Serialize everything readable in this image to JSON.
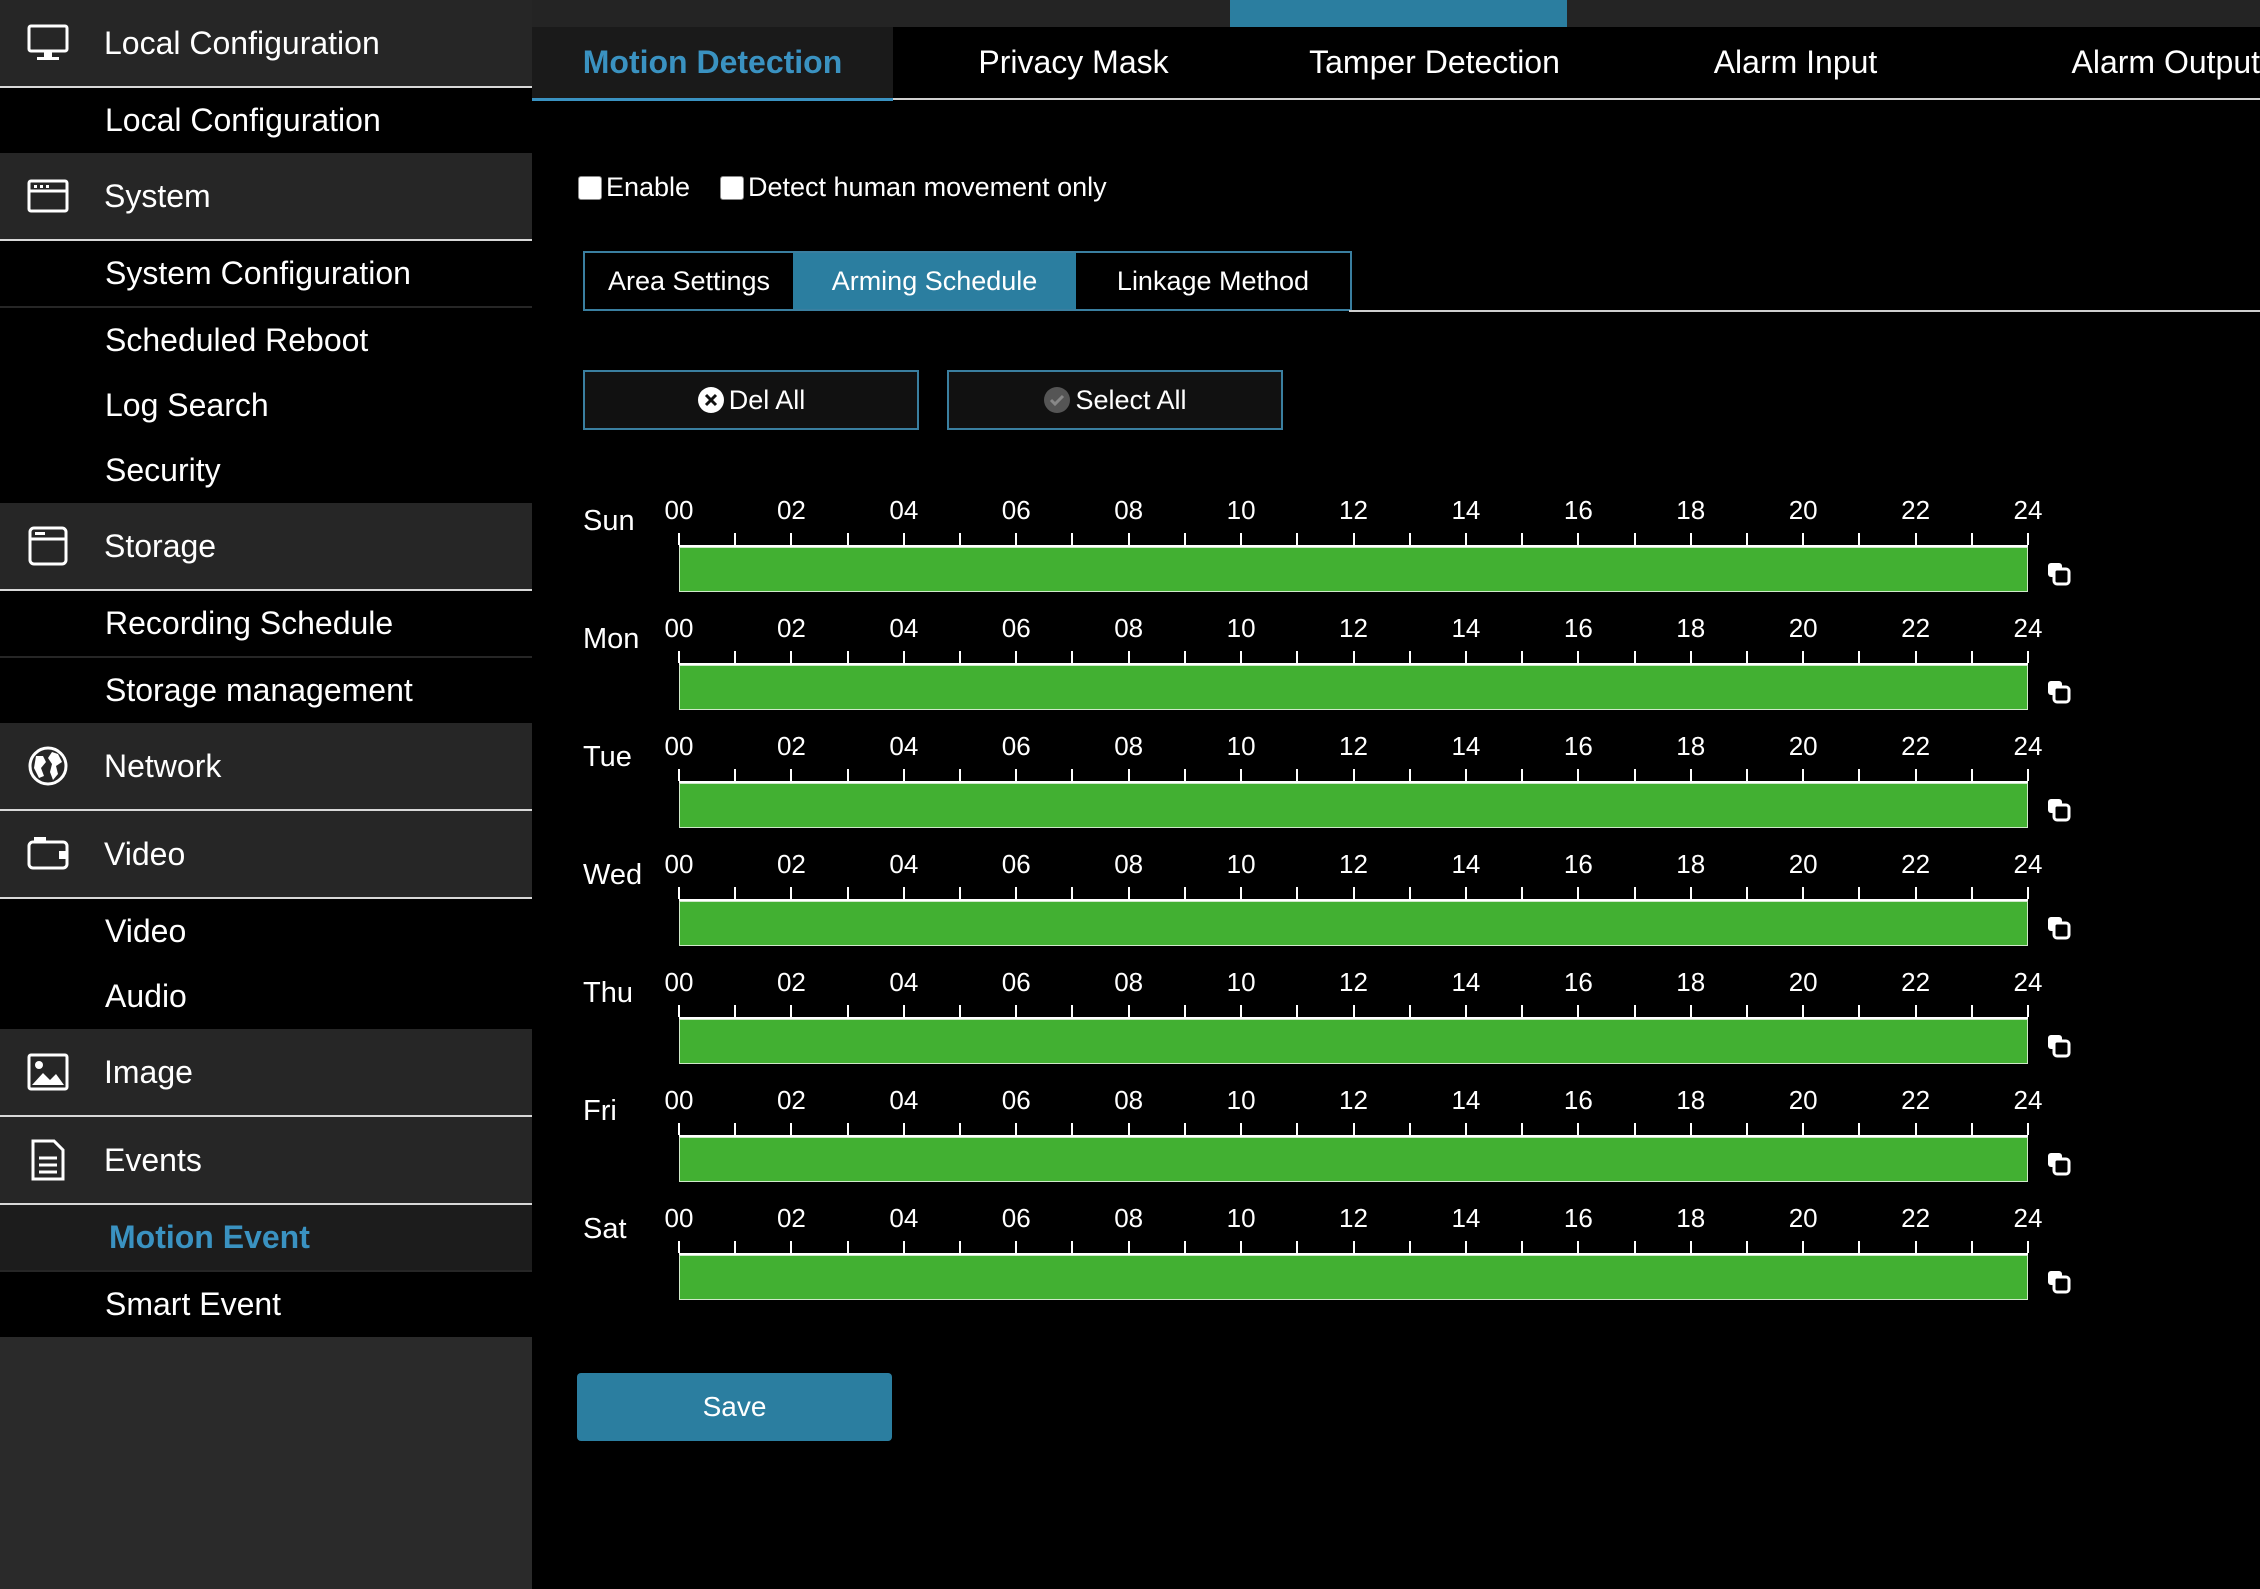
{
  "sidebar": {
    "groups": [
      {
        "label": "Local Configuration",
        "icon": "monitor-icon",
        "items": [
          "Local Configuration"
        ]
      },
      {
        "label": "System",
        "icon": "system-icon",
        "items": [
          "System Configuration",
          "Scheduled Reboot",
          "Log Search",
          "Security"
        ]
      },
      {
        "label": "Storage",
        "icon": "storage-icon",
        "items": [
          "Recording Schedule",
          "Storage management"
        ]
      },
      {
        "label": "Network",
        "icon": "globe-icon",
        "items": []
      },
      {
        "label": "Video",
        "icon": "camera-icon",
        "items": [
          "Video",
          "Audio"
        ]
      },
      {
        "label": "Image",
        "icon": "image-icon",
        "items": []
      },
      {
        "label": "Events",
        "icon": "document-icon",
        "items": [
          "Motion Event",
          "Smart Event"
        ]
      }
    ],
    "active_item": "Motion Event"
  },
  "tabs": [
    "Motion Detection",
    "Privacy Mask",
    "Tamper Detection",
    "Alarm Input",
    "Alarm Output"
  ],
  "active_tab": "Motion Detection",
  "options": {
    "enable_label": "Enable",
    "enable_checked": false,
    "human_label": "Detect human movement only",
    "human_checked": false
  },
  "subtabs": [
    "Area Settings",
    "Arming Schedule",
    "Linkage Method"
  ],
  "active_subtab": "Arming Schedule",
  "buttons": {
    "del_all": "Del All",
    "select_all": "Select All",
    "save": "Save"
  },
  "schedule": {
    "hours": [
      "00",
      "02",
      "04",
      "06",
      "08",
      "10",
      "12",
      "14",
      "16",
      "18",
      "20",
      "22",
      "24"
    ],
    "days": [
      {
        "label": "Sun",
        "armed": [
          [
            0,
            24
          ]
        ]
      },
      {
        "label": "Mon",
        "armed": [
          [
            0,
            24
          ]
        ]
      },
      {
        "label": "Tue",
        "armed": [
          [
            0,
            24
          ]
        ]
      },
      {
        "label": "Wed",
        "armed": [
          [
            0,
            24
          ]
        ]
      },
      {
        "label": "Thu",
        "armed": [
          [
            0,
            24
          ]
        ]
      },
      {
        "label": "Fri",
        "armed": [
          [
            0,
            24
          ]
        ]
      },
      {
        "label": "Sat",
        "armed": [
          [
            0,
            24
          ]
        ]
      }
    ]
  },
  "colors": {
    "accent": "#2b7ea0",
    "active_text": "#3a92c1",
    "armed": "#42b032"
  }
}
